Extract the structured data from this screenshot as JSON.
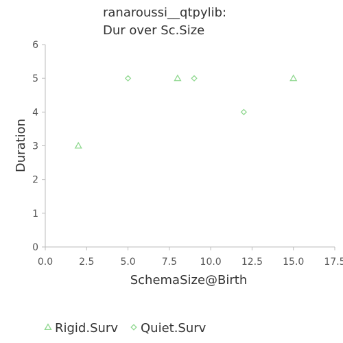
{
  "chart_data": {
    "type": "scatter",
    "title_lines": [
      "ranaroussi__qtpylib:",
      "Dur over Sc.Size"
    ],
    "xlabel": "SchemaSize@Birth",
    "ylabel": "Duration",
    "xlim": [
      0,
      17.5
    ],
    "ylim": [
      0,
      6
    ],
    "x_ticks": [
      "0.0",
      "2.5",
      "5.0",
      "7.5",
      "10.0",
      "12.5",
      "15.0",
      "17.5"
    ],
    "y_ticks": [
      "0",
      "1",
      "2",
      "3",
      "4",
      "5",
      "6"
    ],
    "grid": false,
    "legend_position": "bottom-left",
    "series": [
      {
        "name": "Rigid.Surv",
        "marker": "triangle",
        "color": "#90d890",
        "points": [
          [
            2,
            3
          ],
          [
            8,
            5
          ],
          [
            15,
            5
          ]
        ]
      },
      {
        "name": "Quiet.Surv",
        "marker": "diamond",
        "color": "#90d890",
        "points": [
          [
            5,
            5
          ],
          [
            9,
            5
          ],
          [
            12,
            4
          ]
        ]
      }
    ]
  }
}
